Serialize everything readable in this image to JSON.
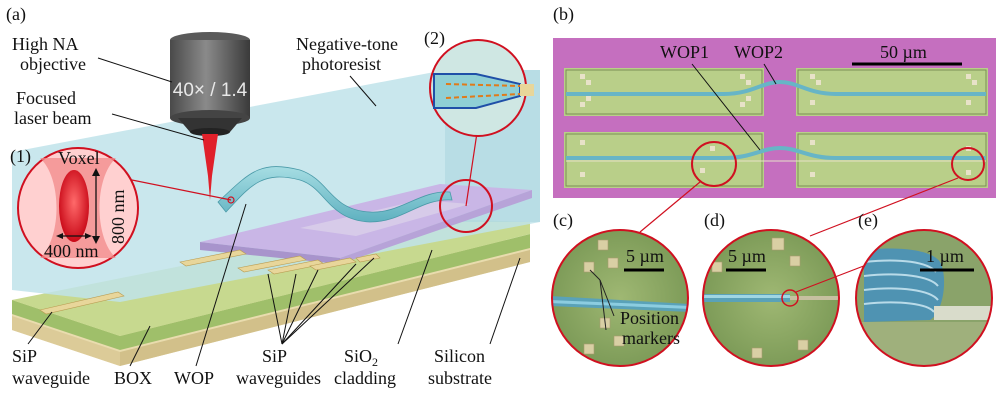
{
  "panel_a": {
    "label": "(a)",
    "objective": {
      "label_line1": "High NA",
      "label_line2": "objective",
      "lens_text": "40× / 1.4"
    },
    "laser": {
      "label_line1": "Focused",
      "label_line2": "laser beam"
    },
    "photoresist": {
      "label_line1": "Negative-tone",
      "label_line2": "photoresist"
    },
    "inset1": {
      "tag": "(1)",
      "voxel_label": "Voxel",
      "height_label": "800 nm",
      "width_label": "400 nm"
    },
    "inset2": {
      "tag": "(2)"
    },
    "bottom_labels": {
      "sip_waveguide_line1": "SiP",
      "sip_waveguide_line2": "waveguide",
      "box": "BOX",
      "wop": "WOP",
      "sip_waveguides_line1": "SiP",
      "sip_waveguides_line2": "waveguides",
      "sio2_line1": "SiO",
      "sio2_sub": "2",
      "sio2_line2": "cladding",
      "silicon_line1": "Silicon",
      "silicon_line2": "substrate"
    },
    "colors": {
      "resist": "#bfe3ea",
      "cladding": "#c9b6e6",
      "box": "#c7d98f",
      "substrate": "#e9dcae",
      "waveguide": "#7fc4d0",
      "laser": "#e0202a"
    }
  },
  "panel_b": {
    "label": "(b)",
    "wop1": "WOP1",
    "wop2": "WOP2",
    "scale": "50 µm",
    "colors": {
      "background": "#c56fbf",
      "sim": "#b9cf89",
      "wire": "#67b5c6"
    }
  },
  "panel_c": {
    "label": "(c)",
    "scale": "5 µm",
    "markers_line1": "Position",
    "markers_line2": "markers"
  },
  "panel_d": {
    "label": "(d)",
    "scale": "5 µm"
  },
  "panel_e": {
    "label": "(e)",
    "scale": "1 µm"
  }
}
